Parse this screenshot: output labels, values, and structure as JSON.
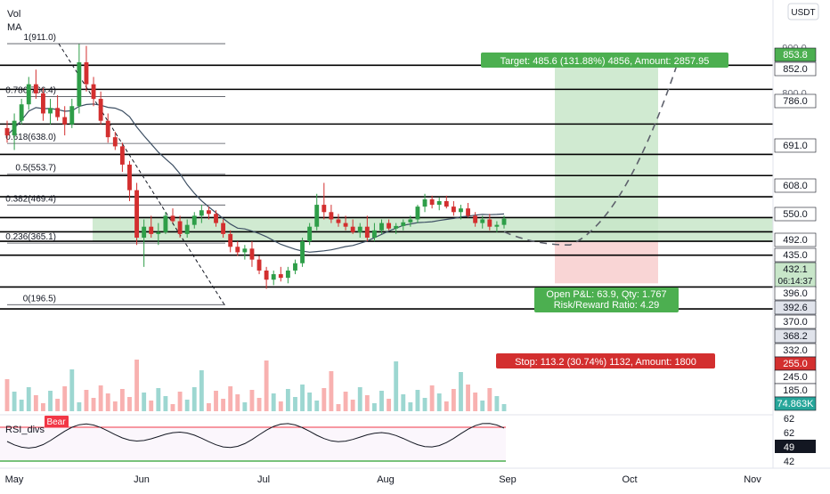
{
  "legend": {
    "vol": "Vol",
    "ma": "MA"
  },
  "currency": "USDT",
  "colors": {
    "up": "#26a69a",
    "down": "#ef5350",
    "up_candle": "#2e9e48",
    "down_candle": "#d32f2f",
    "target_zone": "#c8e6c9",
    "stop_zone": "#f8d0d0",
    "ma_line": "#3d4f63",
    "fib_line": "#131722",
    "level_line": "#000000",
    "rsi_line": "#131722",
    "rsi_upper": "#f23645",
    "rsi_lower": "#4caf50"
  },
  "price_scale": {
    "ticks": [
      "900.0",
      "800.0"
    ],
    "labels": [
      {
        "text": "853.8",
        "bg": "#4caf50",
        "fg": "#ffffff"
      },
      {
        "text": "852.0",
        "bg": "#ffffff",
        "fg": "#131722"
      },
      {
        "text": "786.0",
        "bg": "#ffffff",
        "fg": "#131722"
      },
      {
        "text": "691.0",
        "bg": "#ffffff",
        "fg": "#131722"
      },
      {
        "text": "608.0",
        "bg": "#ffffff",
        "fg": "#131722"
      },
      {
        "text": "550.0",
        "bg": "#ffffff",
        "fg": "#131722"
      },
      {
        "text": "492.0",
        "bg": "#ffffff",
        "fg": "#131722"
      },
      {
        "text": "435.0",
        "bg": "#ffffff",
        "fg": "#131722"
      },
      {
        "text": "432.1",
        "bg": "#c8e6c9",
        "fg": "#131722",
        "sub": "06:14:37"
      },
      {
        "text": "396.0",
        "bg": "#ffffff",
        "fg": "#131722"
      },
      {
        "text": "392.6",
        "bg": "#e0e3eb",
        "fg": "#131722"
      },
      {
        "text": "370.0",
        "bg": "#ffffff",
        "fg": "#131722"
      },
      {
        "text": "368.2",
        "bg": "#e0e3eb",
        "fg": "#131722"
      },
      {
        "text": "332.0",
        "bg": "#ffffff",
        "fg": "#131722"
      },
      {
        "text": "255.0",
        "bg": "#d32f2f",
        "fg": "#ffffff"
      },
      {
        "text": "245.0",
        "bg": "#ffffff",
        "fg": "#131722"
      },
      {
        "text": "185.0",
        "bg": "#ffffff",
        "fg": "#131722"
      },
      {
        "text": "74.863K",
        "bg": "#26a69a",
        "fg": "#ffffff"
      }
    ],
    "rsi_ticks": [
      "62",
      "62",
      "49",
      "42"
    ]
  },
  "time_axis": {
    "labels": [
      "May",
      "Jun",
      "Jul",
      "Aug",
      "Sep",
      "Oct",
      "Nov"
    ]
  },
  "fib": {
    "labels": [
      "1(911.0)",
      "0.786(766.4)",
      "0.618(638.0)",
      "0.5(553.7)",
      "0.382(469.4)",
      "0.236(365.1)",
      "0(196.5)"
    ]
  },
  "trade": {
    "target_label": "Target: 485.6 (131.88%) 4856, Amount: 2857.95",
    "pnl_label": "Open P&L: 63.9, Qty: 1.767",
    "rr_label": "Risk/Reward Ratio: 4.29",
    "stop_label": "Stop: 113.2 (30.74%) 1132, Amount: 1800"
  },
  "rsi": {
    "title": "RSI_divs",
    "bear_label": "Bear"
  },
  "chart_data": {
    "type": "candlestick",
    "title": "",
    "x_range": [
      "May",
      "Nov"
    ],
    "y_range": [
      150,
      930
    ],
    "horizontal_levels": [
      852,
      786,
      691,
      608,
      550,
      492,
      435,
      396,
      370,
      332,
      245,
      185
    ],
    "fib_levels": [
      {
        "ratio": 1,
        "price": 911.0
      },
      {
        "ratio": 0.786,
        "price": 766.4
      },
      {
        "ratio": 0.618,
        "price": 638.0
      },
      {
        "ratio": 0.5,
        "price": 553.7
      },
      {
        "ratio": 0.382,
        "price": 469.4
      },
      {
        "ratio": 0.236,
        "price": 365.1
      },
      {
        "ratio": 0,
        "price": 196.5
      }
    ],
    "position": {
      "entry": 368.2,
      "target": 853.8,
      "stop": 255.0,
      "last_price": 432.1
    },
    "candles": [
      [
        680,
        700,
        640,
        660
      ],
      [
        660,
        720,
        620,
        700
      ],
      [
        700,
        760,
        690,
        745
      ],
      [
        745,
        820,
        730,
        800
      ],
      [
        800,
        840,
        760,
        775
      ],
      [
        775,
        790,
        700,
        720
      ],
      [
        720,
        760,
        690,
        735
      ],
      [
        735,
        770,
        700,
        710
      ],
      [
        710,
        740,
        660,
        690
      ],
      [
        690,
        760,
        680,
        740
      ],
      [
        740,
        910,
        720,
        860
      ],
      [
        860,
        905,
        780,
        800
      ],
      [
        800,
        820,
        740,
        760
      ],
      [
        760,
        780,
        690,
        700
      ],
      [
        700,
        720,
        640,
        655
      ],
      [
        655,
        670,
        620,
        630
      ],
      [
        630,
        640,
        560,
        580
      ],
      [
        580,
        590,
        480,
        510
      ],
      [
        510,
        530,
        360,
        380
      ],
      [
        380,
        430,
        300,
        410
      ],
      [
        410,
        440,
        380,
        390
      ],
      [
        390,
        420,
        360,
        395
      ],
      [
        395,
        450,
        390,
        440
      ],
      [
        440,
        460,
        420,
        425
      ],
      [
        425,
        440,
        380,
        390
      ],
      [
        390,
        430,
        380,
        415
      ],
      [
        415,
        450,
        405,
        440
      ],
      [
        440,
        470,
        420,
        455
      ],
      [
        455,
        465,
        430,
        445
      ],
      [
        445,
        455,
        410,
        420
      ],
      [
        420,
        430,
        380,
        390
      ],
      [
        390,
        400,
        340,
        355
      ],
      [
        355,
        370,
        330,
        340
      ],
      [
        340,
        360,
        320,
        350
      ],
      [
        350,
        370,
        300,
        320
      ],
      [
        320,
        330,
        280,
        290
      ],
      [
        290,
        300,
        240,
        265
      ],
      [
        265,
        290,
        250,
        280
      ],
      [
        280,
        300,
        260,
        270
      ],
      [
        270,
        300,
        255,
        290
      ],
      [
        290,
        320,
        280,
        310
      ],
      [
        310,
        380,
        300,
        370
      ],
      [
        370,
        420,
        360,
        410
      ],
      [
        410,
        500,
        400,
        470
      ],
      [
        470,
        530,
        430,
        450
      ],
      [
        450,
        470,
        420,
        430
      ],
      [
        430,
        445,
        410,
        420
      ],
      [
        420,
        440,
        400,
        410
      ],
      [
        410,
        430,
        390,
        395
      ],
      [
        395,
        420,
        380,
        410
      ],
      [
        410,
        440,
        370,
        380
      ],
      [
        380,
        420,
        370,
        400
      ],
      [
        400,
        430,
        390,
        420
      ],
      [
        420,
        430,
        400,
        405
      ],
      [
        405,
        420,
        390,
        412
      ],
      [
        412,
        430,
        400,
        422
      ],
      [
        422,
        440,
        410,
        430
      ],
      [
        430,
        470,
        420,
        465
      ],
      [
        465,
        500,
        450,
        485
      ],
      [
        485,
        495,
        460,
        470
      ],
      [
        470,
        490,
        455,
        480
      ],
      [
        480,
        495,
        460,
        465
      ],
      [
        465,
        480,
        440,
        450
      ],
      [
        450,
        470,
        430,
        460
      ],
      [
        460,
        475,
        435,
        440
      ],
      [
        440,
        450,
        410,
        420
      ],
      [
        420,
        440,
        405,
        430
      ],
      [
        430,
        445,
        400,
        410
      ],
      [
        410,
        425,
        395,
        415
      ],
      [
        415,
        440,
        405,
        432
      ]
    ]
  }
}
